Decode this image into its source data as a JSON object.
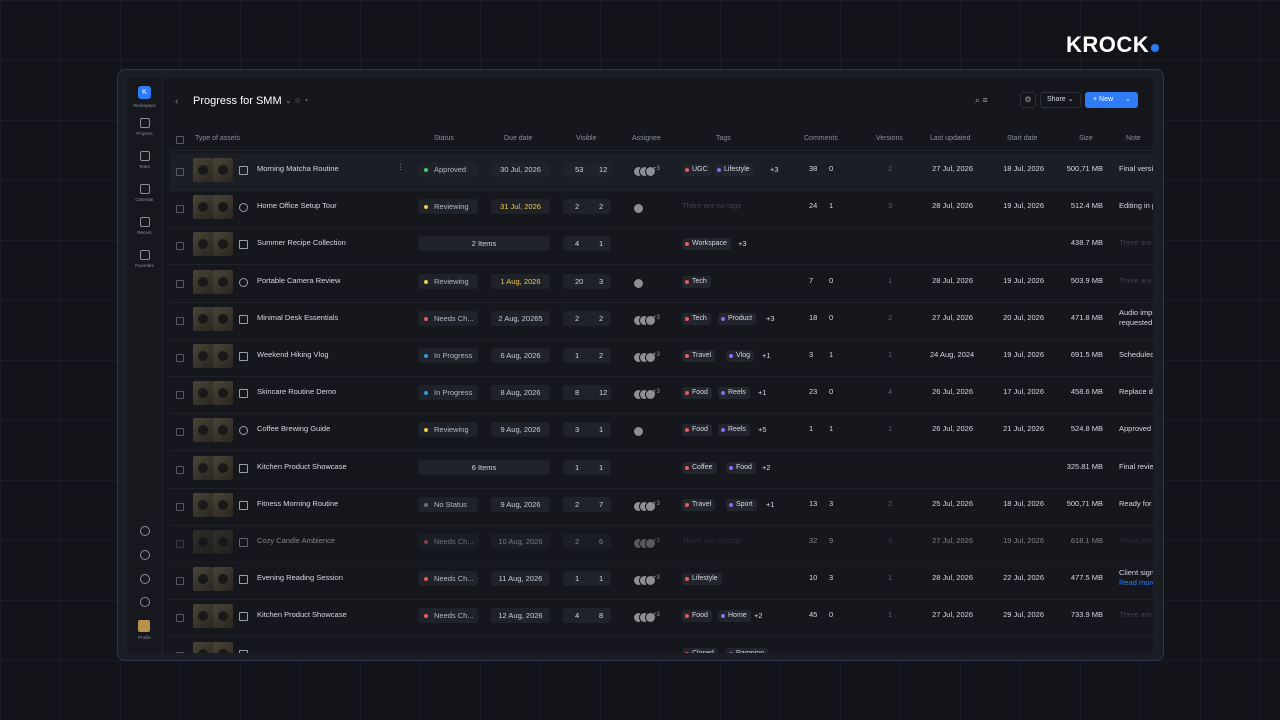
{
  "brand": "KROCK",
  "sidebar": {
    "initial": "K",
    "items": [
      "Workspace",
      "Projects",
      "Team",
      "Calendar",
      "Recent",
      "Favorites"
    ],
    "profile": "Profile"
  },
  "header": {
    "title": "Progress for SMM",
    "share": "Share",
    "new": "New"
  },
  "table": {
    "columns": [
      "Type of assets",
      "Status",
      "Due date",
      "Visible",
      "Assignee",
      "Tags",
      "Comments",
      "Versions",
      "Last updated",
      "Start date",
      "Size",
      "Note"
    ],
    "rows": [
      {
        "icon": "image",
        "name": "Morning Matcha Routine",
        "status": "Approved",
        "status_color": "#3ecf6a",
        "due": "30 Jul, 2026",
        "visible": [
          53,
          12
        ],
        "assignee_more": "+3",
        "tags": [
          "UGC",
          "Lifestyle"
        ],
        "tags_more": "+3",
        "comments": [
          38,
          0
        ],
        "versions": 2,
        "updated": "27 Jul, 2026",
        "start": "18 Jul, 2026",
        "size": "500,71 MB",
        "note": "Final version"
      },
      {
        "icon": "link",
        "name": "Home Office Setup Tour",
        "status": "Reviewing",
        "status_color": "#f2c94c",
        "due": "31 Jul, 2026",
        "due_color": "#f2c94c",
        "visible": [
          2,
          2
        ],
        "no_tags": "There are no tags",
        "comments": [
          24,
          1
        ],
        "versions": 3,
        "updated": "28 Jul, 2026",
        "start": "19 Jul, 2026",
        "size": "512.4 MB",
        "note": "Editing in progress"
      },
      {
        "icon": "folder",
        "name": "Summer Recipe Collection",
        "items": "2 Items",
        "visible": [
          4,
          1
        ],
        "tags": [
          "Workspace"
        ],
        "tags_more": "+3",
        "size": "438.7 MB",
        "note": "There are no notes",
        "note_dim": true
      },
      {
        "icon": "link",
        "name": "Portable Camera Review",
        "status": "Reviewing",
        "status_color": "#f2c94c",
        "due": "1 Aug, 2026",
        "due_color": "#f2c94c",
        "visible": [
          20,
          3
        ],
        "tags": [
          "Tech"
        ],
        "comments": [
          7,
          0
        ],
        "versions": 1,
        "updated": "28 Jul, 2026",
        "start": "19 Jul, 2026",
        "size": "503.9 MB",
        "note": "There are no notes",
        "note_dim": true
      },
      {
        "icon": "image",
        "name": "Minimal Desk Essentials",
        "status": "Needs Ch...",
        "status_color": "#eb5757",
        "due": "2 Aug, 20265",
        "visible": [
          2,
          2
        ],
        "assignee_more": "+3",
        "tags": [
          "Tech",
          "Product"
        ],
        "tags_more": "+3",
        "comments": [
          18,
          0
        ],
        "versions": 2,
        "updated": "27 Jul, 2026",
        "start": "20 Jul, 2026",
        "size": "471.8 MB",
        "note": "Audio improvements",
        "note_more": "requested."
      },
      {
        "icon": "image",
        "name": "Weekend Hiking Vlog",
        "status": "In Progress",
        "status_color": "#2d9cdb",
        "due": "6 Aug, 2026",
        "visible": [
          1,
          2
        ],
        "assignee_more": "+3",
        "tags": [
          "Travel",
          "Vlog"
        ],
        "tags_more": "+1",
        "comments": [
          3,
          1
        ],
        "versions": 1,
        "updated": "24 Aug, 2024",
        "start": "19 Jul, 2026",
        "size": "691.5 MB",
        "note": "Scheduled"
      },
      {
        "icon": "image",
        "name": "Skincare Routine Demo",
        "status": "In Progress",
        "status_color": "#2d9cdb",
        "due": "8 Aug, 2026",
        "visible": [
          8,
          12
        ],
        "assignee_more": "+3",
        "tags": [
          "Food",
          "Reels"
        ],
        "tags_more": "+1",
        "comments": [
          23,
          0
        ],
        "versions": 4,
        "updated": "26 Jul, 2026",
        "start": "17 Jul, 2026",
        "size": "458.6 MB",
        "note": "Replace draft"
      },
      {
        "icon": "link",
        "name": "Coffee Brewing Guide",
        "status": "Reviewing",
        "status_color": "#f2c94c",
        "due": "9 Aug, 2026",
        "visible": [
          3,
          1
        ],
        "tags": [
          "Food",
          "Reels"
        ],
        "tags_more": "+5",
        "comments": [
          1,
          1
        ],
        "versions": 1,
        "updated": "26 Jul, 2026",
        "start": "21 Jul, 2026",
        "size": "524.8 MB",
        "note": "Approved to post"
      },
      {
        "icon": "folder",
        "name": "Kitchen Product Showcase",
        "items": "6 Items",
        "visible": [
          1,
          1
        ],
        "tags": [
          "Coffee",
          "Food"
        ],
        "tags_more": "+2",
        "size": "325.81 MB",
        "note": "Final review"
      },
      {
        "icon": "image",
        "name": "Fitness Morning Routine",
        "status": "No Status",
        "status_color": "#6b7080",
        "due": "9 Aug, 2026",
        "visible": [
          2,
          7
        ],
        "assignee_more": "+3",
        "tags": [
          "Travel",
          "Sport"
        ],
        "tags_more": "+1",
        "comments": [
          13,
          3
        ],
        "versions": 2,
        "updated": "25 Jul, 2026",
        "start": "18 Jul, 2026",
        "size": "500,71 MB",
        "note": "Ready for sharing"
      },
      {
        "icon": "image",
        "name": "Cozy Candle Ambience",
        "status": "Needs Ch...",
        "status_color": "#eb5757",
        "due": "10 Aug, 2026",
        "visible": [
          2,
          6
        ],
        "assignee_more": "+3",
        "no_tags": "There are no tags",
        "comments": [
          32,
          9
        ],
        "versions": 3,
        "updated": "27 Jul, 2026",
        "start": "19 Jul, 2026",
        "size": "618.1 MB",
        "note": "There are no notes",
        "note_dim": true
      },
      {
        "icon": "image",
        "name": "Evening Reading Session",
        "status": "Needs Ch...",
        "status_color": "#eb5757",
        "due": "11 Aug, 2026",
        "visible": [
          1,
          1
        ],
        "assignee_more": "+3",
        "tags": [
          "Lifestyle"
        ],
        "comments": [
          10,
          3
        ],
        "versions": 1,
        "updated": "28 Jul, 2026",
        "start": "22 Jul, 2026",
        "size": "477.5 MB",
        "note": "Client signed off",
        "note_more": "Read more",
        "note_link": true
      },
      {
        "icon": "image",
        "name": "Kitchen Product Showcase",
        "status": "Needs Ch...",
        "status_color": "#eb5757",
        "due": "12 Aug, 2026",
        "visible": [
          4,
          8
        ],
        "assignee_more": "+3",
        "tags": [
          "Food",
          "Home"
        ],
        "tags_more": "+2",
        "comments": [
          45,
          0
        ],
        "versions": 1,
        "updated": "27 Jul, 2026",
        "start": "29 Jul, 2026",
        "size": "733.9 MB",
        "note": "There are no notes",
        "note_dim": true
      },
      {
        "icon": "image",
        "tags": [
          "Closed",
          "Ramping"
        ]
      }
    ]
  }
}
